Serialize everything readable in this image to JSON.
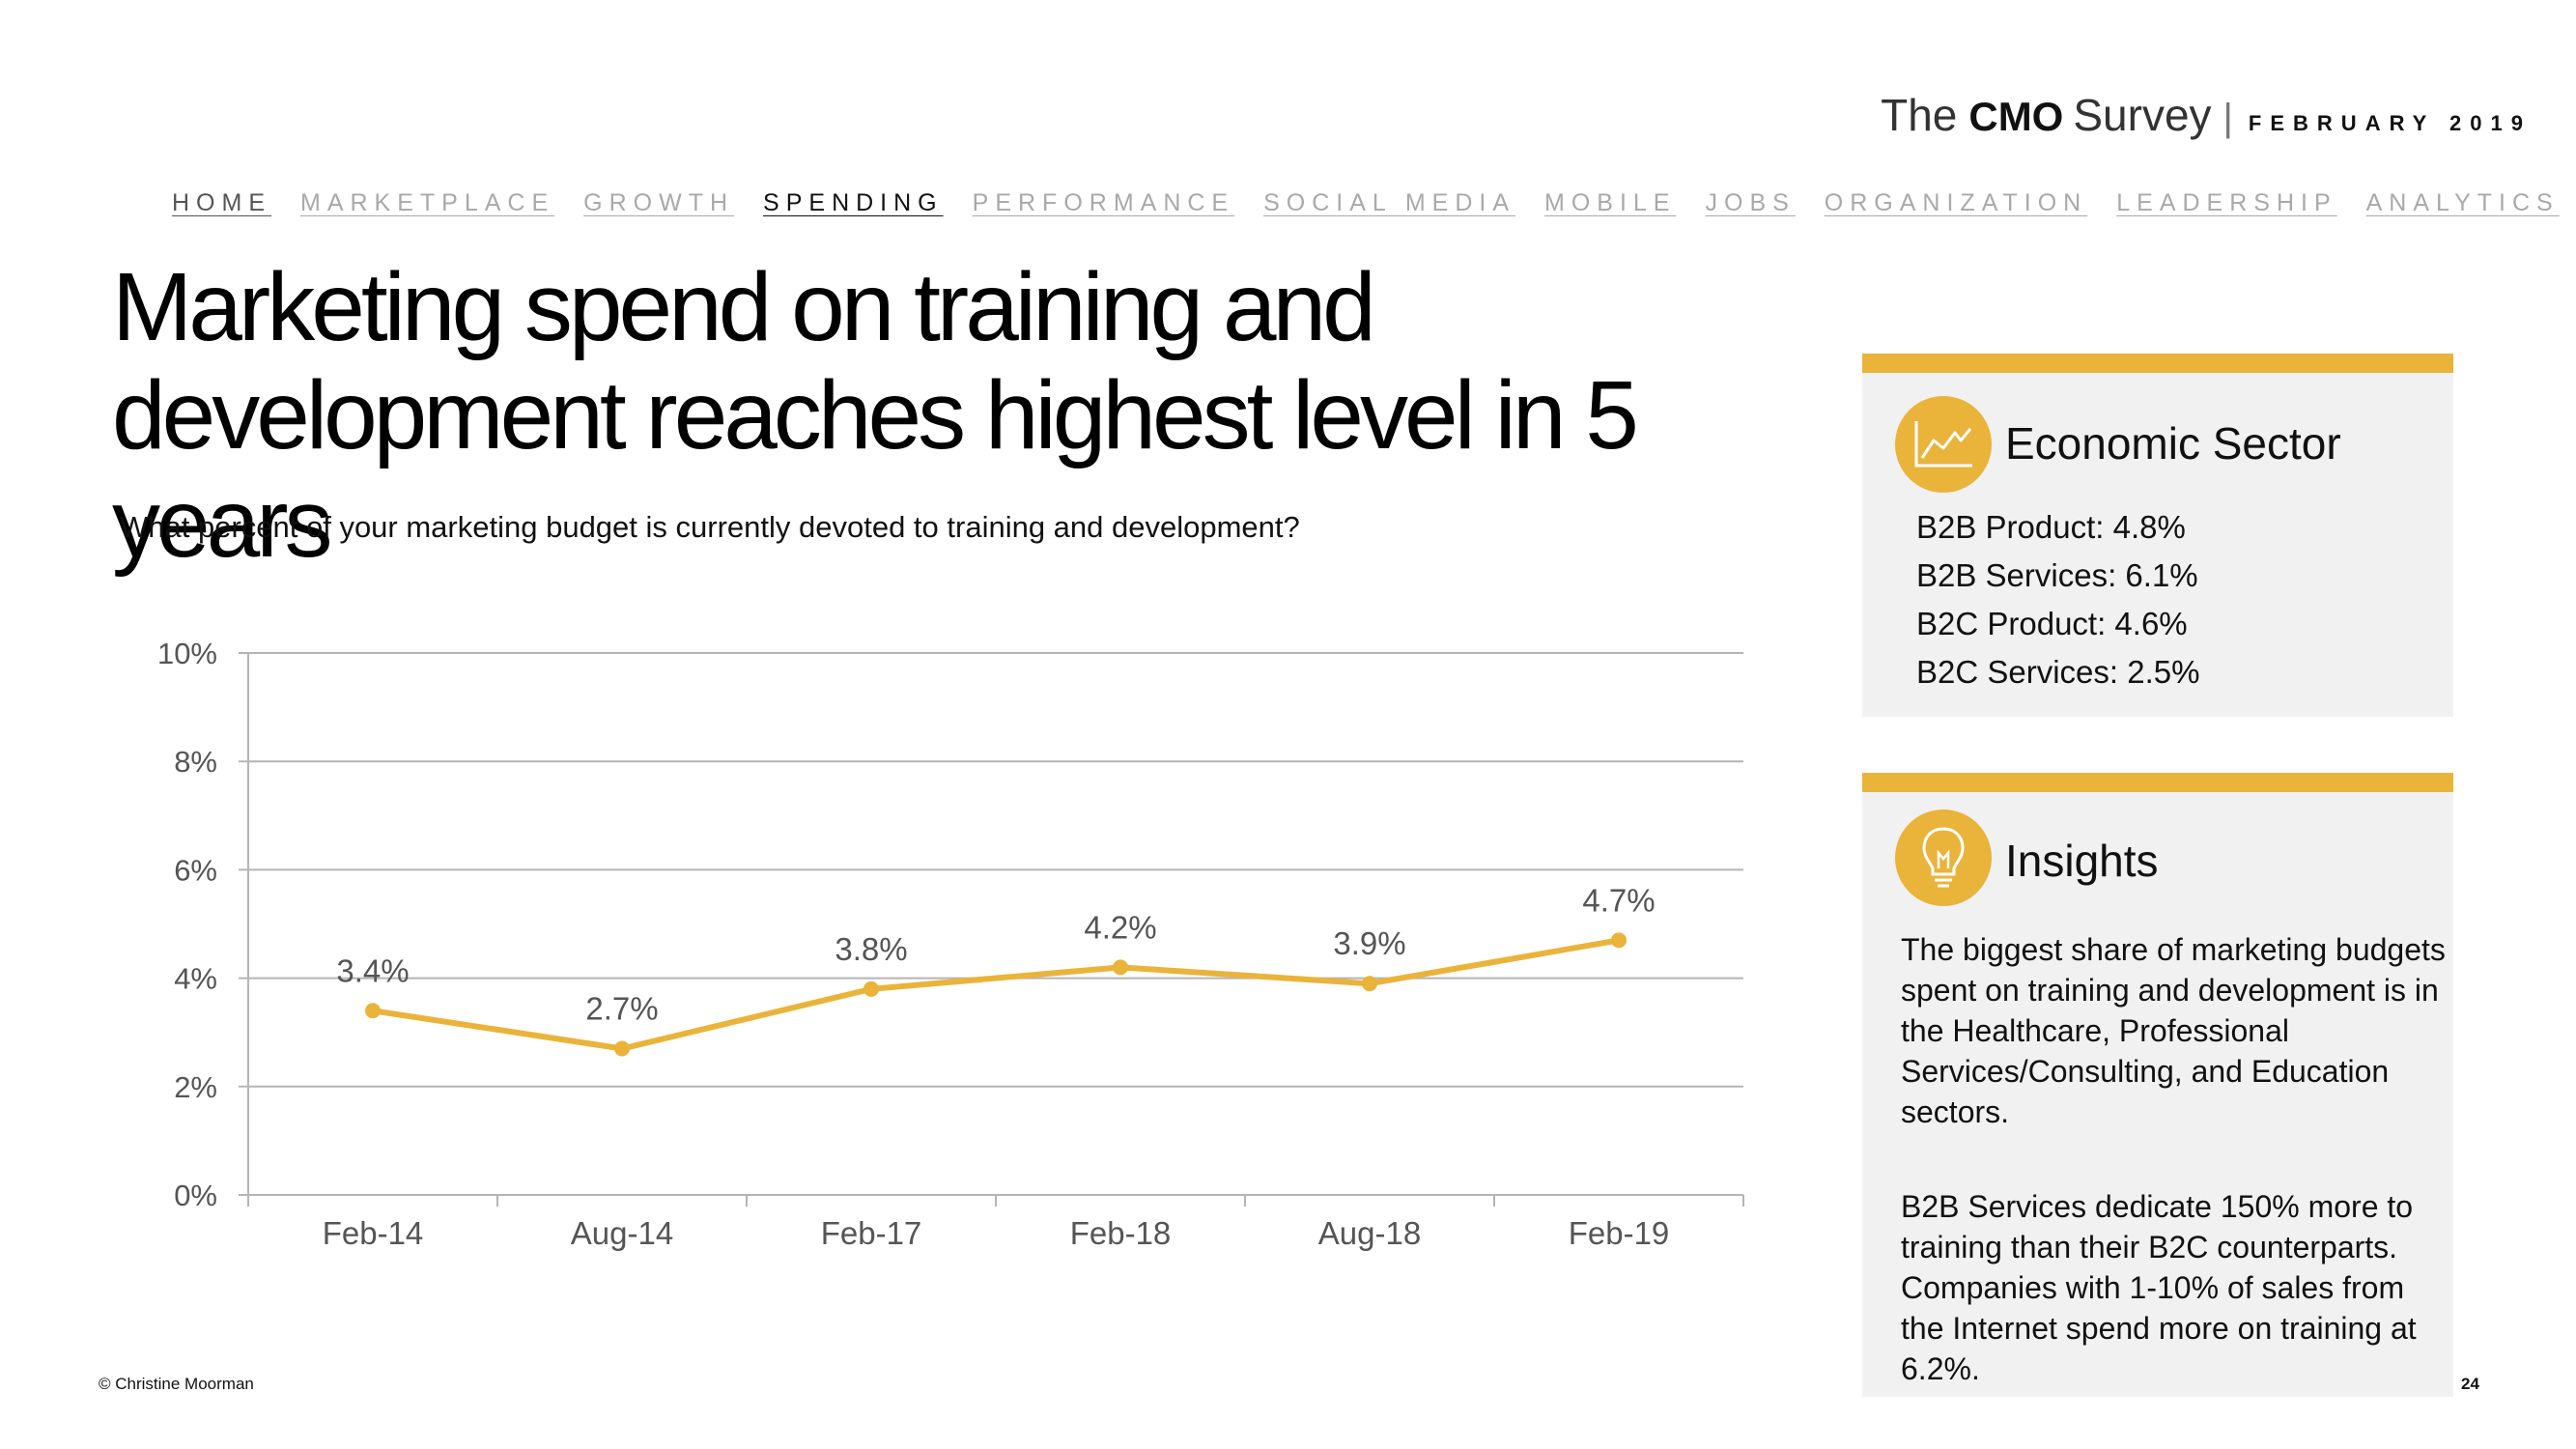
{
  "brand": {
    "the": "The",
    "cmo": "CMO",
    "survey": "Survey",
    "separator": "|",
    "date": "FEBRUARY 2019"
  },
  "nav": [
    "HOME",
    "MARKETPLACE",
    "GROWTH",
    "SPENDING",
    "PERFORMANCE",
    "SOCIAL MEDIA",
    "MOBILE",
    "JOBS",
    "ORGANIZATION",
    "LEADERSHIP",
    "ANALYTICS"
  ],
  "nav_active": "SPENDING",
  "title": "Marketing spend on training and development reaches highest level in 5 years",
  "question": "What percent of your marketing budget is currently devoted to training and development?",
  "chart_data": {
    "type": "line",
    "categories": [
      "Feb-14",
      "Aug-14",
      "Feb-17",
      "Feb-18",
      "Aug-18",
      "Feb-19"
    ],
    "series": [
      {
        "values": [
          3.4,
          2.7,
          3.8,
          4.2,
          3.9,
          4.7
        ],
        "color": "#eab33a"
      }
    ],
    "data_labels": [
      "3.4%",
      "2.7%",
      "3.8%",
      "4.2%",
      "3.9%",
      "4.7%"
    ],
    "yticks": [
      "0%",
      "2%",
      "4%",
      "6%",
      "8%",
      "10%"
    ],
    "ylim": [
      0,
      10
    ],
    "grid": true,
    "legend": "none"
  },
  "sector": {
    "title": "Economic Sector",
    "icon": "line-chart-icon",
    "items": [
      "B2B Product: 4.8%",
      "B2B Services: 6.1%",
      "B2C Product: 4.6%",
      "B2C Services: 2.5%"
    ]
  },
  "insights": {
    "title": "Insights",
    "icon": "lightbulb-icon",
    "p1": "The biggest share of marketing budgets spent on training and development is in the Healthcare, Professional Services/Consulting, and Education sectors.",
    "p2": "B2B Services dedicate 150% more to training than their B2C counterparts. Companies with 1-10% of sales from the Internet spend more on training at 6.2%."
  },
  "copyright": "© Christine Moorman",
  "page_number": "24",
  "colors": {
    "accent": "#eab33a",
    "panel_bg": "#f1f1f1"
  }
}
